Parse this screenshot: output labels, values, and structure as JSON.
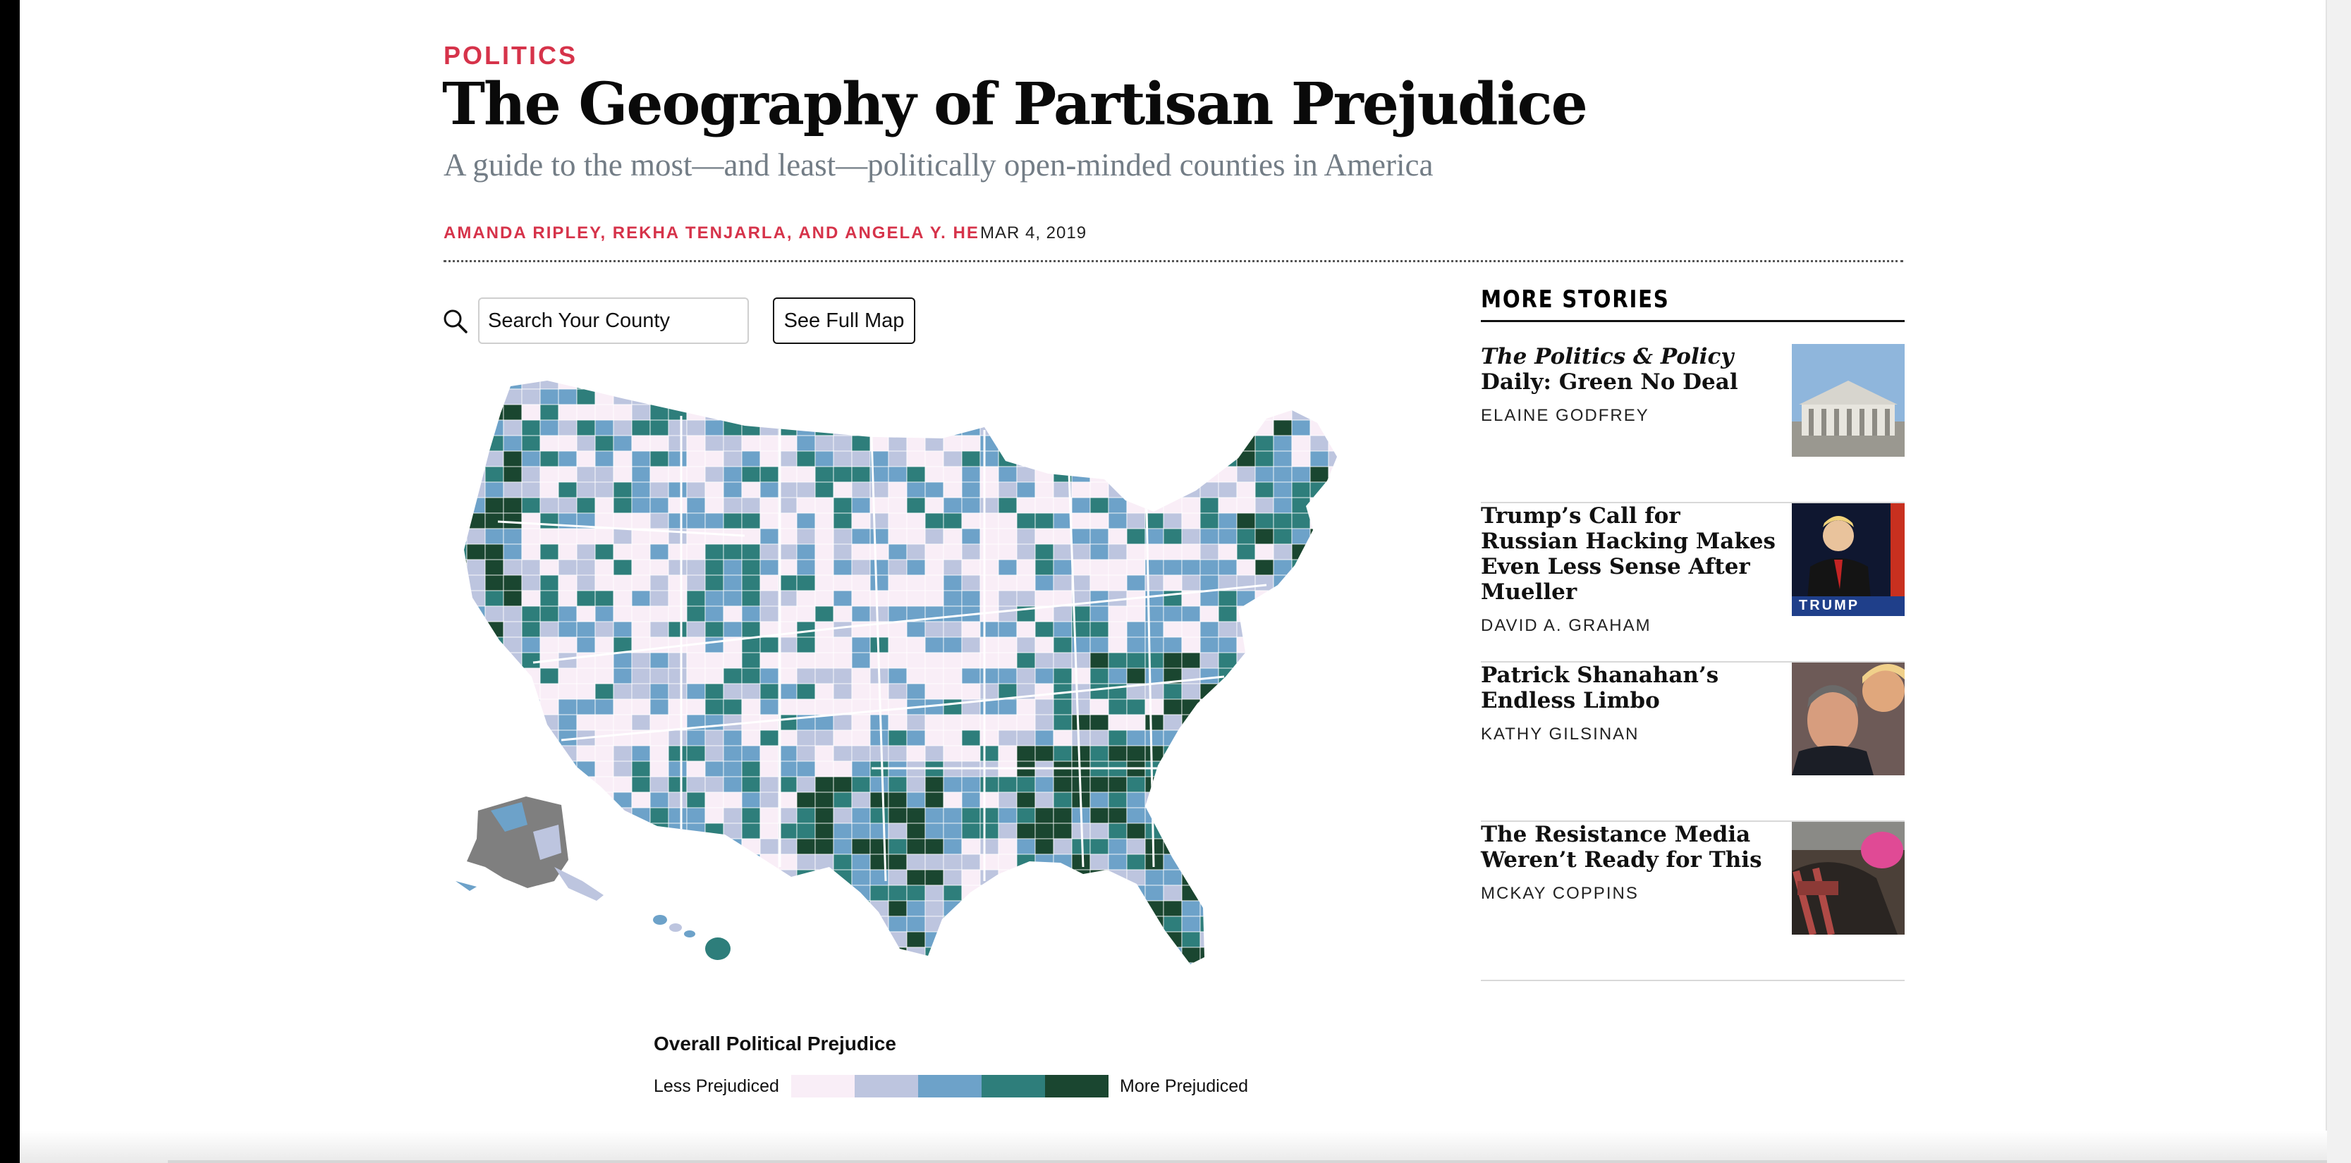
{
  "article": {
    "category": "POLITICS",
    "headline": "The Geography of Partisan Prejudice",
    "dek": "A guide to the most—and least—politically open-minded counties in America",
    "byline": "AMANDA RIPLEY, REKHA TENJARLA, AND ANGELA Y. HE",
    "date": "MAR 4, 2019"
  },
  "map_controls": {
    "search_placeholder": "Search Your County",
    "full_map_label": "See Full Map"
  },
  "legend": {
    "title": "Overall Political Prejudice",
    "low_label": "Less Prejudiced",
    "high_label": "More Prejudiced",
    "colors": [
      "#f9eef7",
      "#bdc5df",
      "#6da2c9",
      "#2e7e7b",
      "#1a4630"
    ]
  },
  "sidebar": {
    "heading": "MORE STORIES",
    "stories": [
      {
        "title_italic": "The Politics & Policy",
        "title_rest": " Daily: Green No Deal",
        "author": "ELAINE GODFREY",
        "thumb_icon": "capitol-photo"
      },
      {
        "title_italic": "",
        "title_rest": "Trump’s Call for Russian Hacking Makes Even Less Sense After Mueller",
        "author": "DAVID A. GRAHAM",
        "thumb_icon": "trump-podium-photo",
        "thumb_caption": "TRUMP"
      },
      {
        "title_italic": "",
        "title_rest": "Patrick Shanahan’s Endless Limbo",
        "author": "KATHY GILSINAN",
        "thumb_icon": "shanahan-photo"
      },
      {
        "title_italic": "",
        "title_rest": "The Resistance Media Weren’t Ready for This",
        "author": "MCKAY COPPINS",
        "thumb_icon": "protest-photo"
      }
    ]
  }
}
